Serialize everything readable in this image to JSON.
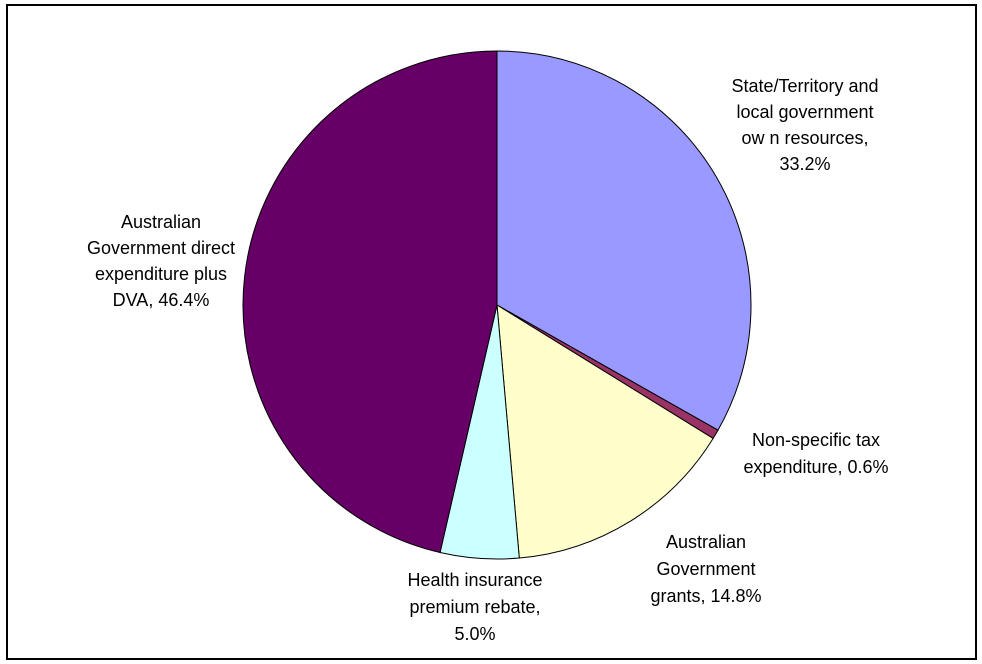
{
  "chart_data": {
    "type": "pie",
    "start_angle_deg": 0,
    "direction": "clockwise",
    "slices": [
      {
        "label_lines": [
          "State/Territory and",
          "local government",
          "ow n resources,",
          "33.2%"
        ],
        "value": 33.2,
        "color": "#9999ff"
      },
      {
        "label_lines": [
          "Non-specific tax",
          "expenditure, 0.6%"
        ],
        "value": 0.6,
        "color": "#993366"
      },
      {
        "label_lines": [
          "Australian",
          "Government",
          "grants, 14.8%"
        ],
        "value": 14.8,
        "color": "#ffffcc"
      },
      {
        "label_lines": [
          "Health insurance",
          "premium rebate,",
          "5.0%"
        ],
        "value": 5.0,
        "color": "#ccffff"
      },
      {
        "label_lines": [
          "Australian",
          "Government direct",
          "expenditure plus",
          "DVA, 46.4%"
        ],
        "value": 46.4,
        "color": "#660066"
      }
    ]
  }
}
